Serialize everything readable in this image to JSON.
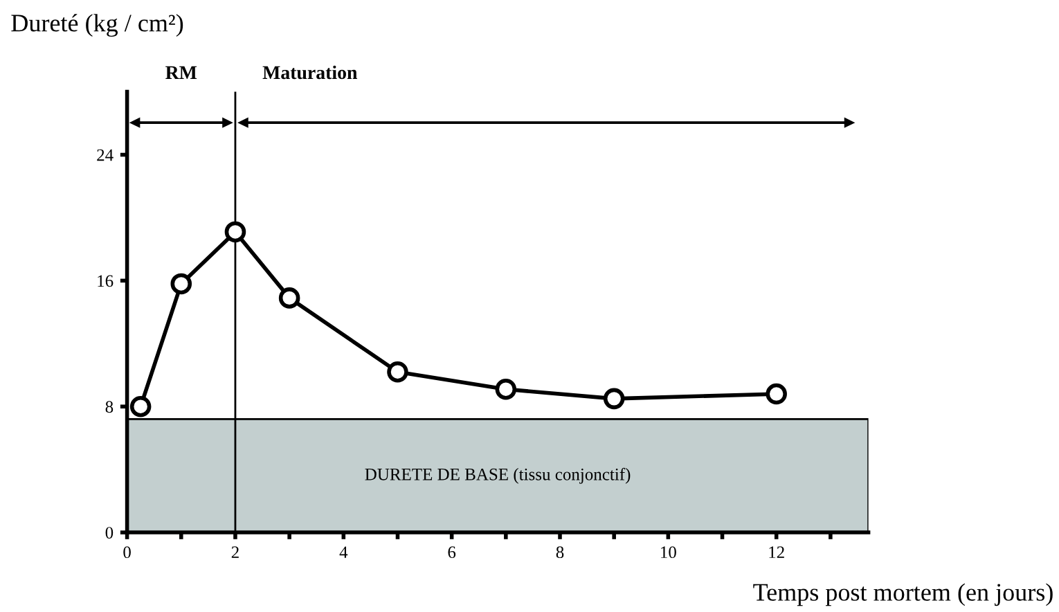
{
  "chart_data": {
    "type": "line",
    "ylabel": "Dureté (kg / cm²)",
    "xlabel": "Temps post mortem (en jours)",
    "x": [
      0.25,
      1,
      2,
      3,
      5,
      7,
      9,
      12
    ],
    "series": [
      {
        "color": "#000000",
        "values": [
          8,
          15.8,
          19.1,
          14.9,
          10.2,
          9.1,
          8.5,
          8.8
        ]
      }
    ],
    "marker": "circle",
    "line_style": "solid",
    "xlim": [
      0,
      13.7
    ],
    "xticks": [
      0,
      {
        "value": 1,
        "label": null
      },
      2,
      {
        "value": 3,
        "label": null
      },
      4,
      {
        "value": 5,
        "label": null
      },
      6,
      {
        "value": 7,
        "label": null
      },
      8,
      {
        "value": 9,
        "label": null
      },
      10,
      {
        "value": 11,
        "label": null
      },
      12,
      {
        "value": 13,
        "label": null
      }
    ],
    "ylim": [
      0,
      28
    ],
    "yticks": [
      0,
      8,
      16,
      24
    ],
    "ref_lines": [
      {
        "axis": "x",
        "value": 2,
        "color": "#000000"
      }
    ],
    "bands": [
      {
        "axis": "y",
        "from": 0,
        "to": 7.2,
        "label": "DURETE DE BASE (tissu conjonctif)",
        "color": "#c3cfcf"
      }
    ],
    "annotations": [
      "RM",
      "Maturation"
    ],
    "grid": false,
    "legend": false
  }
}
